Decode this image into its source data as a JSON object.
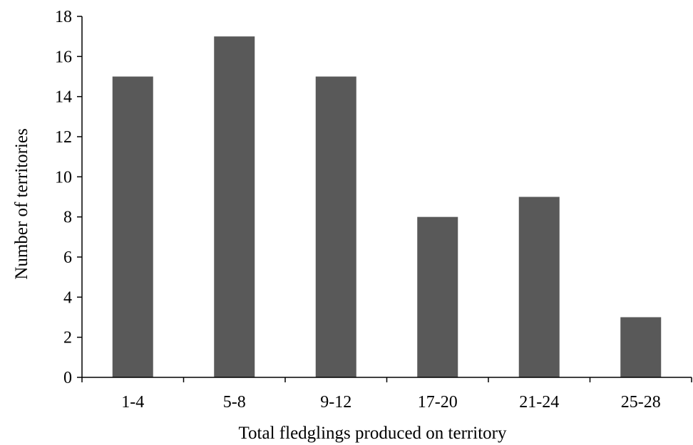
{
  "chart_data": {
    "type": "bar",
    "title": "",
    "xlabel": "Total fledglings produced on territory",
    "ylabel": "Number of territories",
    "categories": [
      "1-4",
      "5-8",
      "9-12",
      "17-20",
      "21-24",
      "25-28"
    ],
    "series": [
      {
        "values": [
          15,
          17,
          15,
          8,
          9,
          3
        ]
      }
    ],
    "ylim": [
      0,
      18
    ],
    "yticks": [
      0,
      2,
      4,
      6,
      8,
      10,
      12,
      14,
      16,
      18
    ],
    "grid": false,
    "legend": "none",
    "colors": {
      "bar": "#595959",
      "axis": "#000000",
      "text": "#000000"
    }
  }
}
